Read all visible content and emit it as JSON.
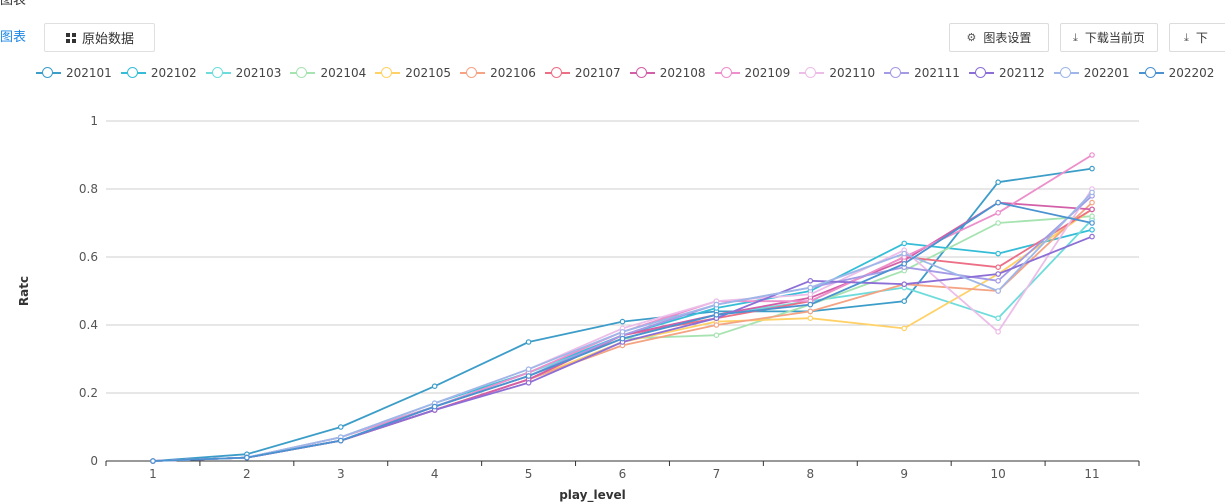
{
  "header": {
    "top_cut_text": "图表",
    "view_toggle": {
      "chart_label": "图表",
      "raw_label": "原始数据",
      "raw_icon": "grid-icon"
    },
    "toolbar": {
      "settings_label": "图表设置",
      "settings_icon": "gear-icon",
      "download_page_label": "下载当前页",
      "download_icon": "download-icon",
      "download_all_label": "下"
    }
  },
  "chart_data": {
    "type": "line",
    "xlabel": "play_level",
    "ylabel": "Ratc",
    "categories": [
      "1",
      "2",
      "3",
      "4",
      "5",
      "6",
      "7",
      "8",
      "9",
      "10",
      "11"
    ],
    "ylim": [
      0,
      1
    ],
    "yticks": [
      "0",
      "0.2",
      "0.4",
      "0.6",
      "0.8",
      "1"
    ],
    "grid": true,
    "legend_position": "top",
    "series": [
      {
        "name": "202101",
        "color": "#3d9dc9",
        "values": [
          0,
          0.02,
          0.1,
          0.22,
          0.35,
          0.41,
          0.44,
          0.44,
          0.47,
          0.82,
          0.86
        ]
      },
      {
        "name": "202102",
        "color": "#35bdd8",
        "values": [
          0,
          0.01,
          0.07,
          0.17,
          0.26,
          0.37,
          0.45,
          0.5,
          0.64,
          0.61,
          0.68
        ]
      },
      {
        "name": "202103",
        "color": "#6fdcdc",
        "values": [
          0,
          0.01,
          0.07,
          0.16,
          0.26,
          0.36,
          0.43,
          0.47,
          0.51,
          0.42,
          0.71
        ]
      },
      {
        "name": "202104",
        "color": "#a6e3b0",
        "values": [
          0,
          0.01,
          0.07,
          0.16,
          0.25,
          0.36,
          0.37,
          0.46,
          0.56,
          0.7,
          0.72
        ]
      },
      {
        "name": "202105",
        "color": "#ffd166",
        "values": [
          0,
          0.01,
          0.06,
          0.15,
          0.24,
          0.35,
          0.41,
          0.42,
          0.39,
          0.55,
          0.74
        ]
      },
      {
        "name": "202106",
        "color": "#f4a383",
        "values": [
          0,
          0.01,
          0.06,
          0.15,
          0.24,
          0.34,
          0.4,
          0.44,
          0.52,
          0.5,
          0.76
        ]
      },
      {
        "name": "202107",
        "color": "#ec6f86",
        "values": [
          0,
          0.01,
          0.06,
          0.15,
          0.24,
          0.37,
          0.42,
          0.47,
          0.6,
          0.57,
          0.74
        ]
      },
      {
        "name": "202108",
        "color": "#d25fa8",
        "values": [
          0,
          0.01,
          0.06,
          0.15,
          0.24,
          0.37,
          0.43,
          0.48,
          0.59,
          0.76,
          0.74
        ]
      },
      {
        "name": "202109",
        "color": "#ec8fcb",
        "values": [
          0,
          0.01,
          0.07,
          0.16,
          0.26,
          0.38,
          0.47,
          0.47,
          0.6,
          0.73,
          0.9
        ]
      },
      {
        "name": "202110",
        "color": "#ecbde8",
        "values": [
          0,
          0.01,
          0.07,
          0.17,
          0.27,
          0.39,
          0.47,
          0.49,
          0.62,
          0.38,
          0.8
        ]
      },
      {
        "name": "202111",
        "color": "#a49be6",
        "values": [
          0,
          0.01,
          0.06,
          0.16,
          0.25,
          0.37,
          0.46,
          0.51,
          0.57,
          0.53,
          0.78
        ]
      },
      {
        "name": "202112",
        "color": "#8c6fd6",
        "values": [
          0,
          0.01,
          0.06,
          0.15,
          0.23,
          0.35,
          0.42,
          0.53,
          0.52,
          0.55,
          0.66
        ]
      },
      {
        "name": "202201",
        "color": "#9fb7e8",
        "values": [
          0,
          0.01,
          0.07,
          0.17,
          0.27,
          0.38,
          0.46,
          0.51,
          0.61,
          0.5,
          0.79
        ]
      },
      {
        "name": "202202",
        "color": "#4a92d0",
        "values": [
          0,
          0.01,
          0.06,
          0.16,
          0.25,
          0.36,
          0.43,
          0.46,
          0.58,
          0.76,
          0.7
        ]
      }
    ]
  }
}
